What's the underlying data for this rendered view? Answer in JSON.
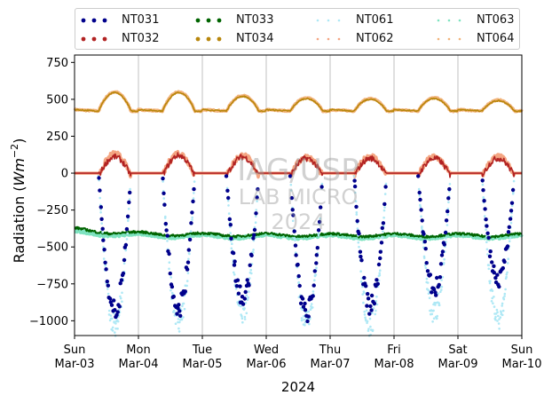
{
  "chart_data": {
    "type": "scatter",
    "ylabel": "Radiation ($Wm^{-2}$)",
    "ylabel_main": "Radiation (",
    "ylabel_unit_base": "Wm",
    "ylabel_unit_exp": "−2",
    "ylabel_close": ")",
    "xlabel": "2024",
    "ylim": [
      -1100,
      800
    ],
    "yticks": [
      750,
      500,
      250,
      0,
      -250,
      -500,
      -750,
      -1000
    ],
    "ytick_labels": [
      "750",
      "500",
      "250",
      "0",
      "−250",
      "−500",
      "−750",
      "−1000"
    ],
    "xlim": [
      "2024-03-03",
      "2024-03-10"
    ],
    "xticks": [
      {
        "day": "Sun",
        "date": "Mar-03"
      },
      {
        "day": "Mon",
        "date": "Mar-04"
      },
      {
        "day": "Tue",
        "date": "Mar-05"
      },
      {
        "day": "Wed",
        "date": "Mar-06"
      },
      {
        "day": "Thu",
        "date": "Mar-07"
      },
      {
        "day": "Fri",
        "date": "Mar-08"
      },
      {
        "day": "Sat",
        "date": "Mar-09"
      },
      {
        "day": "Sun",
        "date": "Mar-10"
      }
    ],
    "grid": "vertical",
    "legend_placement": "top",
    "watermark": [
      "IAG/USP",
      "LAB MICRO",
      "2024"
    ],
    "series": [
      {
        "name": "NT031",
        "color": "#00008b",
        "night_value": null,
        "day_min": [
          -980,
          -960,
          -900,
          -1000,
          -960,
          -820,
          -770
        ]
      },
      {
        "name": "NT032",
        "color": "#b22222",
        "night_value": 0,
        "day_peak": [
          110,
          120,
          110,
          100,
          100,
          100,
          100
        ]
      },
      {
        "name": "NT033",
        "color": "#006400",
        "base": -420,
        "early_value": -380
      },
      {
        "name": "NT034",
        "color": "#b8860b",
        "base": 430,
        "day_peak": [
          555,
          555,
          530,
          515,
          510,
          515,
          500
        ]
      },
      {
        "name": "NT061",
        "color": "#aee8f5",
        "night_value": null,
        "day_min": [
          -1090,
          -1060,
          -1000,
          -1080,
          -1090,
          -1000,
          -1040
        ]
      },
      {
        "name": "NT062",
        "color": "#f4a582",
        "night_value": 0,
        "day_peak": [
          130,
          135,
          120,
          110,
          115,
          110,
          110
        ]
      },
      {
        "name": "NT063",
        "color": "#7ee3c0",
        "base": -430,
        "early_value": -400
      },
      {
        "name": "NT064",
        "color": "#f2b37a",
        "base": 430,
        "day_peak": [
          560,
          560,
          535,
          520,
          515,
          520,
          505
        ]
      }
    ]
  },
  "legend": {
    "items": [
      {
        "label": "NT031",
        "color": "#00008b"
      },
      {
        "label": "NT033",
        "color": "#006400"
      },
      {
        "label": "NT061",
        "color": "#aee8f5"
      },
      {
        "label": "NT063",
        "color": "#7ee3c0"
      },
      {
        "label": "NT032",
        "color": "#b22222"
      },
      {
        "label": "NT034",
        "color": "#b8860b"
      },
      {
        "label": "NT062",
        "color": "#f4a582"
      },
      {
        "label": "NT064",
        "color": "#f2b37a"
      }
    ]
  }
}
